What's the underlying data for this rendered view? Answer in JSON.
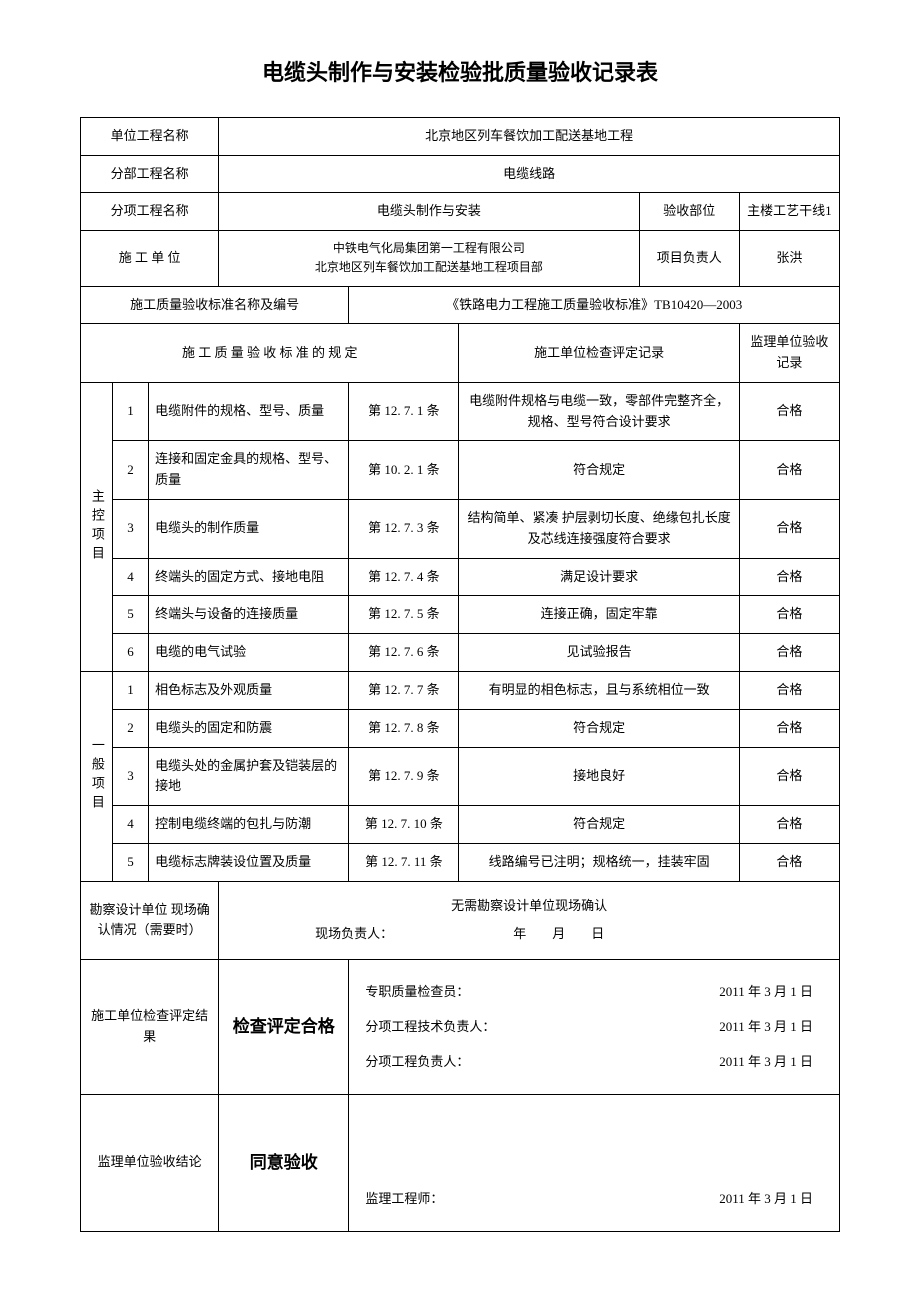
{
  "title": "电缆头制作与安装检验批质量验收记录表",
  "header": {
    "unit_project_label": "单位工程名称",
    "unit_project_value": "北京地区列车餐饮加工配送基地工程",
    "sub_project_label": "分部工程名称",
    "sub_project_value": "电缆线路",
    "item_project_label": "分项工程名称",
    "item_project_value": "电缆头制作与安装",
    "accept_part_label": "验收部位",
    "accept_part_value": "主楼工艺干线1",
    "construction_unit_label": "施 工 单 位",
    "construction_unit_value": "中铁电气化局集团第一工程有限公司\n北京地区列车餐饮加工配送基地工程项目部",
    "project_manager_label": "项目负责人",
    "project_manager_value": "张洪",
    "standard_name_label": "施工质量验收标准名称及编号",
    "standard_name_value": "《铁路电力工程施工质量验收标准》TB10420—2003",
    "standard_rule_label": "施 工 质 量 验 收 标 准 的 规 定",
    "inspection_record_label": "施工单位检查评定记录",
    "supervision_record_label": "监理单位验收记录"
  },
  "main_items_label": "主控项目",
  "general_items_label": "一般项目",
  "main_items": [
    {
      "num": "1",
      "desc": "电缆附件的规格、型号、质量",
      "clause": "第 12. 7. 1 条",
      "record": "电缆附件规格与电缆一致，零部件完整齐全，规格、型号符合设计要求",
      "result": "合格"
    },
    {
      "num": "2",
      "desc": "连接和固定金具的规格、型号、质量",
      "clause": "第 10. 2. 1 条",
      "record": "符合规定",
      "result": "合格"
    },
    {
      "num": "3",
      "desc": "电缆头的制作质量",
      "clause": "第 12. 7. 3 条",
      "record": "结构简单、紧凑 护层剥切长度、绝缘包扎长度及芯线连接强度符合要求",
      "result": "合格"
    },
    {
      "num": "4",
      "desc": "终端头的固定方式、接地电阻",
      "clause": "第 12. 7. 4 条",
      "record": "满足设计要求",
      "result": "合格"
    },
    {
      "num": "5",
      "desc": "终端头与设备的连接质量",
      "clause": "第 12. 7. 5 条",
      "record": "连接正确，固定牢靠",
      "result": "合格"
    },
    {
      "num": "6",
      "desc": "电缆的电气试验",
      "clause": "第 12. 7. 6 条",
      "record": "见试验报告",
      "result": "合格"
    }
  ],
  "general_items": [
    {
      "num": "1",
      "desc": "相色标志及外观质量",
      "clause": "第 12. 7. 7 条",
      "record": "有明显的相色标志，且与系统相位一致",
      "result": "合格"
    },
    {
      "num": "2",
      "desc": "电缆头的固定和防震",
      "clause": "第 12. 7. 8 条",
      "record": "符合规定",
      "result": "合格"
    },
    {
      "num": "3",
      "desc": "电缆头处的金属护套及铠装层的接地",
      "clause": "第 12. 7. 9 条",
      "record": "接地良好",
      "result": "合格"
    },
    {
      "num": "4",
      "desc": "控制电缆终端的包扎与防潮",
      "clause": "第 12. 7. 10 条",
      "record": "符合规定",
      "result": "合格"
    },
    {
      "num": "5",
      "desc": "电缆标志牌装设位置及质量",
      "clause": "第 12. 7. 11 条",
      "record": "线路编号已注明；规格统一，挂装牢固",
      "result": "合格"
    }
  ],
  "survey": {
    "label": "勘察设计单位 现场确认情况（需要时）",
    "text": "无需勘察设计单位现场确认",
    "signer_label": "现场负责人：",
    "date_placeholder": "年　　月　　日"
  },
  "construction_check": {
    "label": "施工单位检查评定结果",
    "conclusion": "检查评定合格",
    "sign1_label": "专职质量检查员：",
    "sign1_date": "2011 年 3 月 1 日",
    "sign2_label": "分项工程技术负责人：",
    "sign2_date": "2011 年 3 月 1 日",
    "sign3_label": "分项工程负责人：",
    "sign3_date": "2011 年 3 月 1 日"
  },
  "supervision": {
    "label": "监理单位验收结论",
    "conclusion": "同意验收",
    "signer_label": "监理工程师：",
    "signer_date": "2011 年 3 月 1 日"
  }
}
